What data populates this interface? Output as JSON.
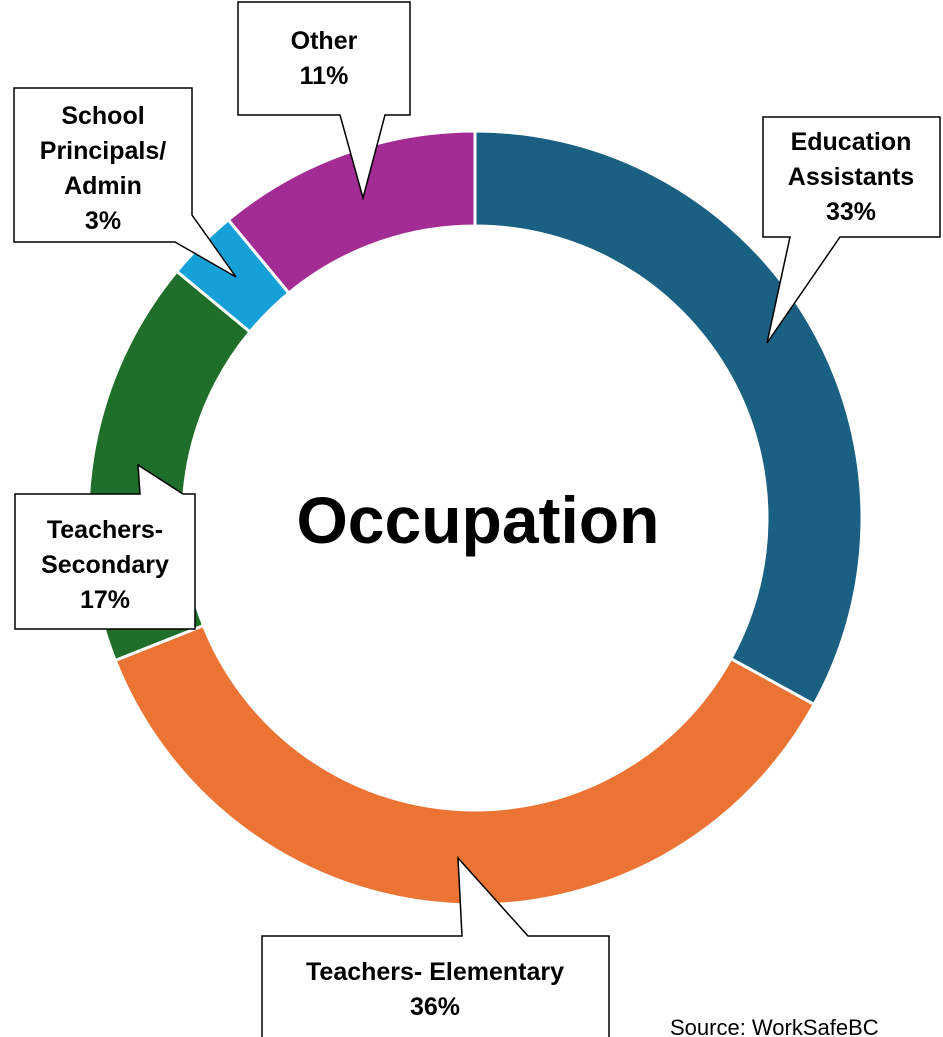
{
  "chart_data": {
    "type": "donut",
    "title": "Occupation",
    "categories": [
      "Education Assistants",
      "Teachers- Elementary",
      "Teachers- Secondary",
      "School Principals/ Admin",
      "Other"
    ],
    "values": [
      33,
      36,
      17,
      3,
      11
    ],
    "value_labels": [
      "33%",
      "36%",
      "17%",
      "3%",
      "11%"
    ],
    "colors": [
      "#1a6082",
      "#eb7434",
      "#1f6e2a",
      "#15a1d8",
      "#a22b94"
    ],
    "source": "Source: WorkSafeBC"
  }
}
